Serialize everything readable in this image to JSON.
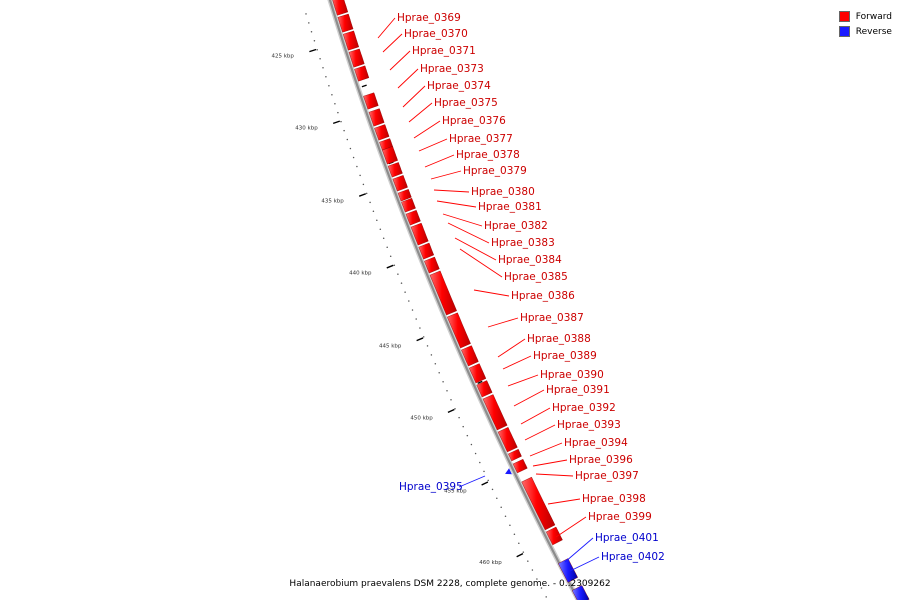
{
  "legend": {
    "forward": {
      "label": "Forward",
      "color": "#ff0000"
    },
    "reverse": {
      "label": "Reverse",
      "color": "#1a1aff"
    }
  },
  "caption": "Halanaerobium praevalens DSM 2228, complete genome. - 0..2309262",
  "ticks": [
    "425 kbp",
    "430 kbp",
    "435 kbp",
    "440 kbp",
    "445 kbp",
    "450 kbp",
    "455 kbp",
    "460 kbp"
  ],
  "genes": [
    {
      "name": "Hprae_0369",
      "strand": "forward"
    },
    {
      "name": "Hprae_0370",
      "strand": "forward"
    },
    {
      "name": "Hprae_0371",
      "strand": "forward"
    },
    {
      "name": "Hprae_0373",
      "strand": "forward"
    },
    {
      "name": "Hprae_0374",
      "strand": "forward"
    },
    {
      "name": "Hprae_0375",
      "strand": "forward"
    },
    {
      "name": "Hprae_0376",
      "strand": "forward"
    },
    {
      "name": "Hprae_0377",
      "strand": "forward"
    },
    {
      "name": "Hprae_0378",
      "strand": "forward"
    },
    {
      "name": "Hprae_0379",
      "strand": "forward"
    },
    {
      "name": "Hprae_0380",
      "strand": "forward"
    },
    {
      "name": "Hprae_0381",
      "strand": "forward"
    },
    {
      "name": "Hprae_0382",
      "strand": "forward"
    },
    {
      "name": "Hprae_0383",
      "strand": "forward"
    },
    {
      "name": "Hprae_0384",
      "strand": "forward"
    },
    {
      "name": "Hprae_0385",
      "strand": "forward"
    },
    {
      "name": "Hprae_0386",
      "strand": "forward"
    },
    {
      "name": "Hprae_0387",
      "strand": "forward"
    },
    {
      "name": "Hprae_0388",
      "strand": "forward"
    },
    {
      "name": "Hprae_0389",
      "strand": "forward"
    },
    {
      "name": "Hprae_0390",
      "strand": "forward"
    },
    {
      "name": "Hprae_0391",
      "strand": "forward"
    },
    {
      "name": "Hprae_0392",
      "strand": "forward"
    },
    {
      "name": "Hprae_0393",
      "strand": "forward"
    },
    {
      "name": "Hprae_0394",
      "strand": "forward"
    },
    {
      "name": "Hprae_0396",
      "strand": "forward"
    },
    {
      "name": "Hprae_0397",
      "strand": "forward"
    },
    {
      "name": "Hprae_0395",
      "strand": "reverse"
    },
    {
      "name": "Hprae_0398",
      "strand": "forward"
    },
    {
      "name": "Hprae_0399",
      "strand": "forward"
    },
    {
      "name": "Hprae_0401",
      "strand": "reverse"
    },
    {
      "name": "Hprae_0402",
      "strand": "reverse"
    }
  ]
}
